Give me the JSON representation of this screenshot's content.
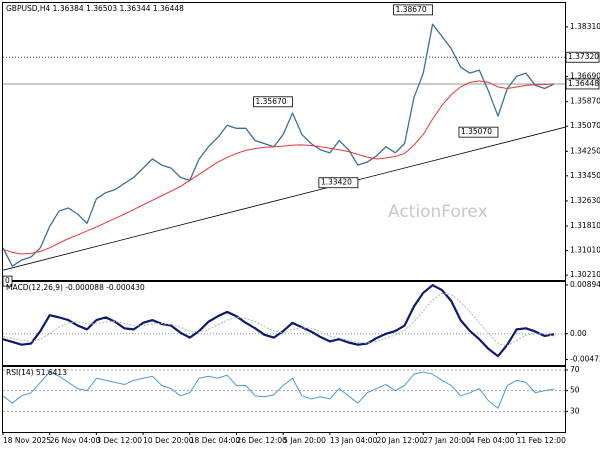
{
  "chart_data": [
    {
      "type": "line",
      "title": "GBPUSD,H4  1.36384 1.36503 1.36344 1.36448",
      "watermark": "ActionForex",
      "categories": [
        "18 Nov 2025",
        null,
        null,
        null,
        null,
        "26 Nov 04:00",
        null,
        null,
        null,
        null,
        "3 Dec 12:00",
        null,
        null,
        null,
        null,
        "10 Dec 20:00",
        null,
        null,
        null,
        null,
        "18 Dec 04:00",
        null,
        null,
        null,
        null,
        "26 Dec 12:00",
        null,
        null,
        null,
        null,
        "5 Jan 20:00",
        null,
        null,
        null,
        null,
        "13 Jan 04:00",
        null,
        null,
        null,
        null,
        "20 Jan 12:00",
        null,
        null,
        null,
        null,
        "27 Jan 20:00",
        null,
        null,
        null,
        null,
        "4 Feb 04:00",
        null,
        null,
        null,
        null,
        "11 Feb 12:00",
        null,
        null,
        null,
        null
      ],
      "series": [
        {
          "color": "#3d6f96",
          "width": 1.3,
          "values": [
            1.311,
            1.305,
            1.307,
            1.308,
            1.311,
            1.318,
            1.323,
            1.324,
            1.322,
            1.319,
            1.327,
            1.329,
            1.33,
            1.332,
            1.334,
            1.337,
            1.34,
            1.338,
            1.337,
            1.334,
            1.333,
            1.34,
            1.344,
            1.347,
            1.351,
            1.35,
            1.35,
            1.346,
            1.345,
            1.344,
            1.348,
            1.355,
            1.348,
            1.345,
            1.343,
            1.342,
            1.346,
            1.343,
            1.338,
            1.339,
            1.341,
            1.344,
            1.342,
            1.345,
            1.36,
            1.368,
            1.384,
            1.38,
            1.376,
            1.37,
            1.368,
            1.369,
            1.362,
            1.354,
            1.363,
            1.367,
            1.368,
            1.364,
            1.363,
            1.36448
          ]
        },
        {
          "color": "#e53935",
          "width": 1,
          "values": [
            1.3105,
            1.3095,
            1.309,
            1.3092,
            1.3098,
            1.311,
            1.3125,
            1.314,
            1.3152,
            1.3165,
            1.3178,
            1.3192,
            1.3206,
            1.322,
            1.3235,
            1.325,
            1.3265,
            1.328,
            1.3295,
            1.331,
            1.333,
            1.335,
            1.337,
            1.339,
            1.3405,
            1.3418,
            1.3428,
            1.3434,
            1.3438,
            1.344,
            1.3442,
            1.3445,
            1.3446,
            1.3444,
            1.344,
            1.3435,
            1.343,
            1.3424,
            1.3415,
            1.3406,
            1.34,
            1.3403,
            1.3408,
            1.3418,
            1.3445,
            1.348,
            1.353,
            1.3575,
            1.361,
            1.3635,
            1.365,
            1.3655,
            1.365,
            1.3635,
            1.363,
            1.3635,
            1.364,
            1.3642,
            1.3643,
            1.3645
          ]
        }
      ],
      "ylim": [
        1.3005,
        1.3909
      ],
      "yticks": [
        {
          "value": 1.3831,
          "label": "1.38310"
        },
        {
          "value": 1.3669,
          "label": "1.36690"
        },
        {
          "value": 1.3587,
          "label": "1.35870"
        },
        {
          "value": 1.3507,
          "label": "1.35070"
        },
        {
          "value": 1.3425,
          "label": "1.34250"
        },
        {
          "value": 1.3345,
          "label": "1.33450"
        },
        {
          "value": 1.3263,
          "label": "1.32630"
        },
        {
          "value": 1.3181,
          "label": "1.31810"
        },
        {
          "value": 1.3101,
          "label": "1.31010"
        },
        {
          "value": 1.3021,
          "label": "1.30210"
        }
      ],
      "levels": [
        {
          "value": 1.3732,
          "label": "1.37320",
          "style": "dotted"
        },
        {
          "value": 1.36448,
          "label": "1.36448",
          "style": "solid"
        }
      ],
      "annotations": [
        {
          "x": 46,
          "value": 1.3867,
          "label": "1.38670"
        },
        {
          "x": 31,
          "value": 1.3567,
          "label": "1.35670"
        },
        {
          "x": 38,
          "value": 1.3342,
          "label": "1.33420"
        },
        {
          "x": 53,
          "value": 1.3507,
          "label": "1.35070"
        },
        {
          "x": 0,
          "value": 1.3021,
          "label": "0"
        }
      ],
      "trendline": {
        "x": [
          0,
          60.2
        ],
        "y": [
          1.3037,
          1.3504
        ]
      }
    },
    {
      "type": "line",
      "title": "MACD(12,26,9) -0.000088 -0.000430",
      "series": [
        {
          "color": "#0d1b6f",
          "width": 2.2,
          "values": [
            -0.001,
            -0.0015,
            -0.002,
            -0.0018,
            0.0005,
            0.0034,
            0.003,
            0.0025,
            0.0015,
            0.0008,
            0.0025,
            0.003,
            0.0022,
            0.001,
            0.0008,
            0.002,
            0.0025,
            0.0018,
            0.0015,
            0.0002,
            -0.0007,
            0.0005,
            0.0022,
            0.0032,
            0.004,
            0.0032,
            0.002,
            0.001,
            -0.0002,
            -0.0007,
            0.0005,
            0.002,
            0.0012,
            0.0004,
            -0.0006,
            -0.0014,
            -0.001,
            -0.0016,
            -0.002,
            -0.0018,
            -0.0008,
            0.0,
            0.0005,
            0.0015,
            0.005,
            0.0075,
            0.0089,
            0.008,
            0.006,
            0.0025,
            0.0005,
            -0.001,
            -0.0028,
            -0.0041,
            -0.002,
            0.0008,
            0.001,
            0.0004,
            -0.0004,
            -8.8e-05
          ]
        },
        {
          "color": "#b5b5b5",
          "width": 1,
          "dash": true,
          "values": [
            -0.0005,
            -0.0008,
            -0.0012,
            -0.0014,
            -0.001,
            0.0,
            0.0012,
            0.002,
            0.0022,
            0.0018,
            0.0018,
            0.0022,
            0.0023,
            0.0019,
            0.0015,
            0.0015,
            0.0018,
            0.0019,
            0.0017,
            0.0012,
            0.0005,
            0.0003,
            0.0008,
            0.0016,
            0.0025,
            0.003,
            0.0028,
            0.0022,
            0.0013,
            0.0005,
            0.0002,
            0.0008,
            0.0011,
            0.001,
            0.0004,
            -0.0004,
            -0.0008,
            -0.0012,
            -0.0016,
            -0.0017,
            -0.0014,
            -0.0008,
            -0.0002,
            0.0006,
            0.0022,
            0.0042,
            0.0062,
            0.0074,
            0.0072,
            0.0058,
            0.004,
            0.002,
            0.0,
            -0.0018,
            -0.0022,
            -0.0012,
            -0.0003,
            0.0,
            0.0,
            -0.00043
          ]
        }
      ],
      "ylim": [
        -0.00572,
        0.00948
      ],
      "yticks": [
        0.008942,
        {
          "value": 0,
          "label": "0.00"
        },
        -0.004725
      ],
      "zero_line": true
    },
    {
      "type": "line",
      "title": "RSI(14) 51.6413",
      "series": [
        {
          "color": "#4f9bd6",
          "width": 1,
          "values": [
            45,
            38,
            45,
            48,
            58,
            68,
            64,
            58,
            52,
            50,
            62,
            60,
            58,
            56,
            60,
            62,
            64,
            55,
            52,
            45,
            48,
            62,
            64,
            62,
            65,
            55,
            55,
            45,
            44,
            46,
            55,
            62,
            45,
            42,
            44,
            42,
            52,
            45,
            38,
            48,
            52,
            56,
            50,
            55,
            66,
            68,
            66,
            60,
            55,
            45,
            48,
            52,
            40,
            33,
            55,
            60,
            58,
            48,
            50,
            51.6413
          ]
        }
      ],
      "ylim": [
        10,
        72.9
      ],
      "yticks": [
        70,
        50,
        30
      ],
      "grid": true
    }
  ]
}
